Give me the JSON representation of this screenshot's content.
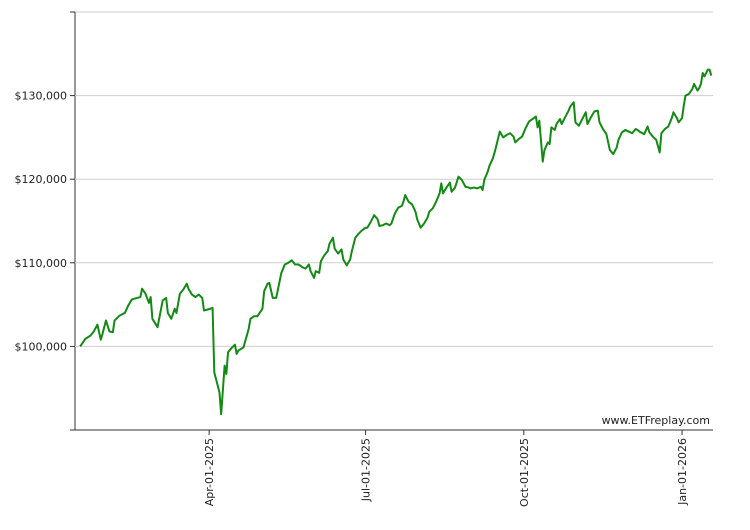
{
  "chart_data": {
    "type": "line",
    "color": "#138a13",
    "watermark": "www.ETFreplay.com",
    "xlim": [
      "2025-01-13",
      "2026-01-19"
    ],
    "xticks": [
      {
        "value": "2025-04-01",
        "label": "Apr-01-2025"
      },
      {
        "value": "2025-07-01",
        "label": "Jul-01-2025"
      },
      {
        "value": "2025-10-01",
        "label": "Oct-01-2025"
      },
      {
        "value": "2026-01-01",
        "label": "Jan-01-2026"
      }
    ],
    "ylim": [
      90000,
      140000
    ],
    "yticks": [
      {
        "value": 100000,
        "label": "$100,000"
      },
      {
        "value": 110000,
        "label": "$110,000"
      },
      {
        "value": 120000,
        "label": "$120,000"
      },
      {
        "value": 130000,
        "label": "$130,000"
      }
    ],
    "grid": true,
    "x": [
      "2025-01-16",
      "2025-01-19",
      "2025-01-22",
      "2025-01-24",
      "2025-01-26",
      "2025-01-28",
      "2025-01-29",
      "2025-01-31",
      "2025-02-02",
      "2025-02-04",
      "2025-02-05",
      "2025-02-08",
      "2025-02-11",
      "2025-02-13",
      "2025-02-15",
      "2025-02-18",
      "2025-02-20",
      "2025-02-21",
      "2025-02-23",
      "2025-02-25",
      "2025-02-26",
      "2025-02-27",
      "2025-03-02",
      "2025-03-05",
      "2025-03-07",
      "2025-03-08",
      "2025-03-10",
      "2025-03-12",
      "2025-03-13",
      "2025-03-15",
      "2025-03-17",
      "2025-03-19",
      "2025-03-20",
      "2025-03-22",
      "2025-03-24",
      "2025-03-26",
      "2025-03-28",
      "2025-03-29",
      "2025-03-31",
      "2025-04-03",
      "2025-04-04",
      "2025-04-07",
      "2025-04-08",
      "2025-04-10",
      "2025-04-11",
      "2025-04-12",
      "2025-04-14",
      "2025-04-16",
      "2025-04-17",
      "2025-04-18",
      "2025-04-21",
      "2025-04-24",
      "2025-04-25",
      "2025-04-27",
      "2025-04-29",
      "2025-05-02",
      "2025-05-03",
      "2025-05-05",
      "2025-05-06",
      "2025-05-08",
      "2025-05-10",
      "2025-05-12",
      "2025-05-13",
      "2025-05-15",
      "2025-05-17",
      "2025-05-19",
      "2025-05-21",
      "2025-05-23",
      "2025-05-25",
      "2025-05-27",
      "2025-05-29",
      "2025-05-30",
      "2025-06-01",
      "2025-06-02",
      "2025-06-04",
      "2025-06-05",
      "2025-06-07",
      "2025-06-09",
      "2025-06-10",
      "2025-06-12",
      "2025-06-13",
      "2025-06-15",
      "2025-06-17",
      "2025-06-18",
      "2025-06-20",
      "2025-06-22",
      "2025-06-23",
      "2025-06-25",
      "2025-06-27",
      "2025-06-29",
      "2025-07-01",
      "2025-07-02",
      "2025-07-04",
      "2025-07-06",
      "2025-07-08",
      "2025-07-09",
      "2025-07-11",
      "2025-07-13",
      "2025-07-15",
      "2025-07-16",
      "2025-07-18",
      "2025-07-20",
      "2025-07-22",
      "2025-07-23",
      "2025-07-24",
      "2025-07-26",
      "2025-07-28",
      "2025-07-30",
      "2025-07-31",
      "2025-08-02",
      "2025-08-04",
      "2025-08-06",
      "2025-08-07",
      "2025-08-09",
      "2025-08-11",
      "2025-08-13",
      "2025-08-14",
      "2025-08-15",
      "2025-08-17",
      "2025-08-19",
      "2025-08-20",
      "2025-08-22",
      "2025-08-24",
      "2025-08-26",
      "2025-08-28",
      "2025-08-30",
      "2025-08-31",
      "2025-09-02",
      "2025-09-04",
      "2025-09-06",
      "2025-09-07",
      "2025-09-08",
      "2025-09-10",
      "2025-09-11",
      "2025-09-13",
      "2025-09-14",
      "2025-09-15",
      "2025-09-17",
      "2025-09-19",
      "2025-09-21",
      "2025-09-23",
      "2025-09-25",
      "2025-09-26",
      "2025-09-28",
      "2025-09-30",
      "2025-10-02",
      "2025-10-04",
      "2025-10-06",
      "2025-10-08",
      "2025-10-09",
      "2025-10-10",
      "2025-10-12",
      "2025-10-13",
      "2025-10-15",
      "2025-10-16",
      "2025-10-17",
      "2025-10-19",
      "2025-10-20",
      "2025-10-22",
      "2025-10-23",
      "2025-10-25",
      "2025-10-27",
      "2025-10-28",
      "2025-10-30",
      "2025-10-31",
      "2025-11-02",
      "2025-11-04",
      "2025-11-06",
      "2025-11-07",
      "2025-11-09",
      "2025-11-11",
      "2025-11-13",
      "2025-11-14",
      "2025-11-16",
      "2025-11-18",
      "2025-11-20",
      "2025-11-22",
      "2025-11-24",
      "2025-11-25",
      "2025-11-27",
      "2025-11-29",
      "2025-12-01",
      "2025-12-03",
      "2025-12-05",
      "2025-12-06",
      "2025-12-08",
      "2025-12-10",
      "2025-12-12",
      "2025-12-13",
      "2025-12-15",
      "2025-12-17",
      "2025-12-19",
      "2025-12-20",
      "2025-12-22",
      "2025-12-24",
      "2025-12-25",
      "2025-12-26",
      "2025-12-27",
      "2025-12-29",
      "2025-12-30",
      "2026-01-01",
      "2026-01-02",
      "2026-01-03",
      "2026-01-05",
      "2026-01-07",
      "2026-01-08",
      "2026-01-10",
      "2026-01-11",
      "2026-01-12",
      "2026-01-13",
      "2026-01-14",
      "2026-01-16",
      "2026-01-17",
      "2026-01-18"
    ],
    "values": [
      100000,
      100900,
      101300,
      101800,
      102600,
      100800,
      101500,
      103100,
      101800,
      101700,
      103100,
      103700,
      104000,
      104900,
      105600,
      105800,
      105900,
      106900,
      106300,
      105200,
      105900,
      103300,
      102300,
      105500,
      105800,
      104000,
      103300,
      104500,
      104000,
      106300,
      106800,
      107500,
      106900,
      106200,
      105900,
      106200,
      105800,
      104300,
      104400,
      104600,
      96900,
      94500,
      91900,
      97700,
      96700,
      99300,
      99800,
      100200,
      99100,
      99500,
      99900,
      102100,
      103300,
      103600,
      103600,
      104500,
      106600,
      107500,
      107600,
      105800,
      105800,
      107800,
      108800,
      109800,
      110000,
      110300,
      109800,
      109800,
      109500,
      109300,
      109800,
      109000,
      108200,
      109000,
      108800,
      110200,
      110900,
      111400,
      112300,
      113000,
      111700,
      111100,
      111600,
      110400,
      109700,
      110400,
      111400,
      113000,
      113500,
      113900,
      114200,
      114200,
      114900,
      115700,
      115200,
      114400,
      114500,
      114700,
      114500,
      114700,
      115900,
      116600,
      116800,
      117300,
      118100,
      117300,
      117000,
      116100,
      115200,
      114200,
      114700,
      115400,
      116100,
      116500,
      117300,
      118300,
      119500,
      118300,
      119000,
      119600,
      118500,
      119000,
      120300,
      119900,
      119100,
      119000,
      118900,
      119000,
      118900,
      119100,
      118700,
      119900,
      120900,
      121600,
      122500,
      123200,
      124000,
      125700,
      125000,
      125300,
      125500,
      125100,
      124400,
      124800,
      125100,
      126100,
      126900,
      127200,
      127500,
      126200,
      127000,
      122100,
      123500,
      124400,
      124200,
      126200,
      125900,
      126600,
      127200,
      126600,
      127400,
      128200,
      128700,
      129200,
      126800,
      126400,
      127200,
      128000,
      126600,
      127400,
      128100,
      128200,
      126800,
      126000,
      125400,
      123500,
      123000,
      123800,
      124700,
      125600,
      125900,
      125700,
      125500,
      126000,
      125900,
      125600,
      125400,
      126300,
      125600,
      125100,
      124700,
      123200,
      125500,
      126000,
      126300,
      126800,
      127300,
      128000,
      127300,
      126800,
      127300,
      128800,
      130000,
      130200,
      130800,
      131400,
      130600,
      130900,
      131400,
      132700,
      132300,
      133100,
      133100,
      132400
    ]
  }
}
